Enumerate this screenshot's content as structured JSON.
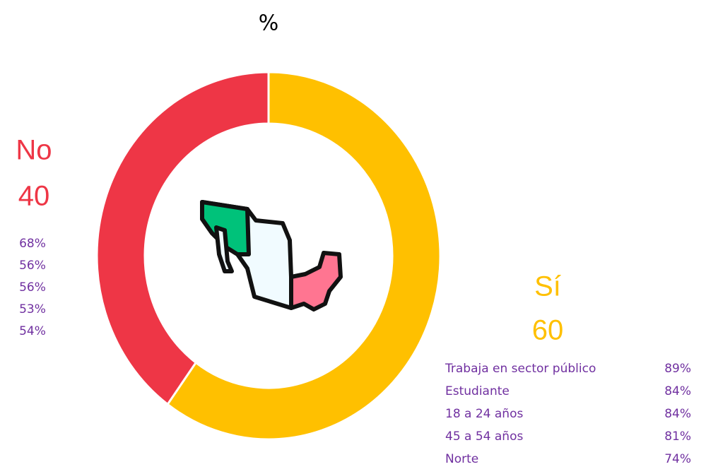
{
  "chart_data": {
    "type": "donut",
    "title": "%",
    "categories": [
      "Sí",
      "No"
    ],
    "values": [
      60,
      40
    ],
    "colors": [
      "#ffc000",
      "#ee3646"
    ],
    "breakdowns": [
      {
        "labels": [
          "Trabaja en sector público",
          "Estudiante",
          "18 a 24 años",
          "45 a 54 años",
          "Norte"
        ],
        "values": [
          89,
          84,
          84,
          81,
          74
        ],
        "value_labels": [
          "89%",
          "84%",
          "84%",
          "81%",
          "74%"
        ]
      },
      {
        "values": [
          68,
          56,
          56,
          53,
          54
        ],
        "value_labels": [
          "68%",
          "56%",
          "56%",
          "53%",
          "54%"
        ]
      }
    ]
  }
}
